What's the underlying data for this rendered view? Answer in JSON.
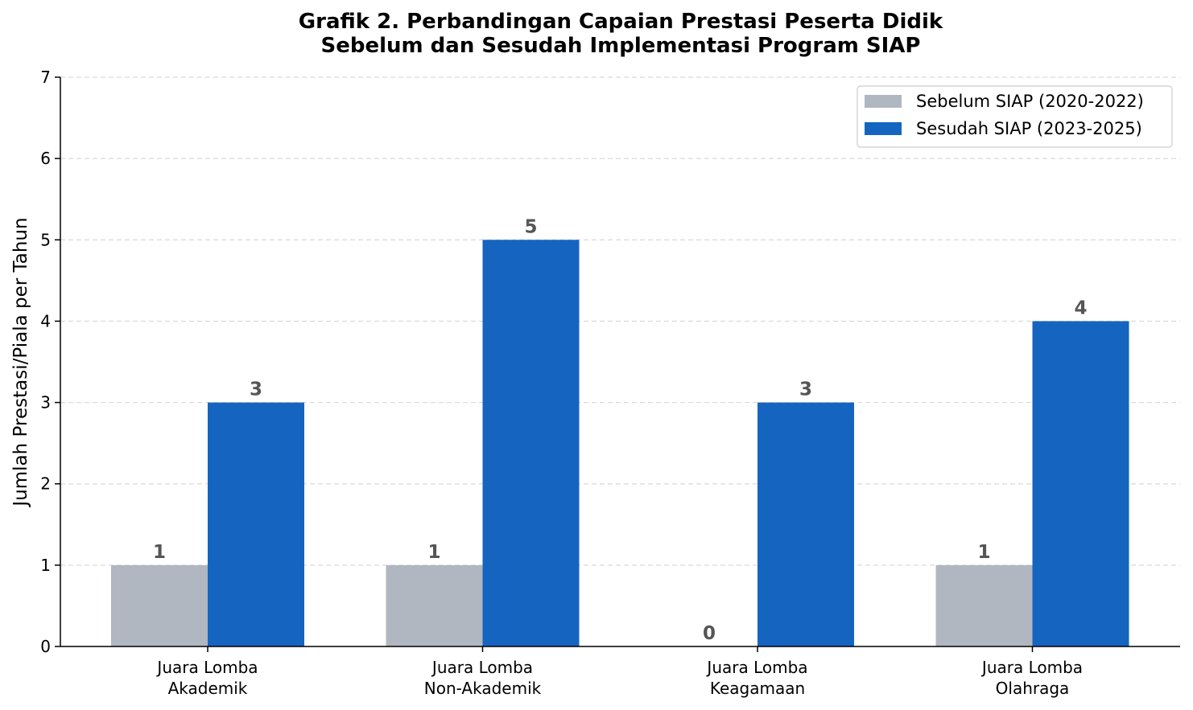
{
  "chart_data": {
    "type": "bar",
    "title": [
      "Grafik 2. Perbandingan Capaian Prestasi Peserta Didik",
      "Sebelum dan Sesudah Implementasi Program SIAP"
    ],
    "ylabel": "Jumlah Prestasi/Piala per Tahun",
    "xlabel": "",
    "ylim": [
      0,
      7
    ],
    "yticks": [
      0,
      1,
      2,
      3,
      4,
      5,
      6,
      7
    ],
    "grid": "y-dashed",
    "legend_position": "top-right",
    "categories": [
      [
        "Juara Lomba",
        "Akademik"
      ],
      [
        "Juara Lomba",
        "Non-Akademik"
      ],
      [
        "Juara Lomba",
        "Keagamaan"
      ],
      [
        "Juara Lomba",
        "Olahraga"
      ]
    ],
    "series": [
      {
        "name": "Sebelum SIAP (2020-2022)",
        "color": "#b0b7c0",
        "values": [
          1,
          1,
          0,
          1
        ]
      },
      {
        "name": "Sesudah SIAP (2023-2025)",
        "color": "#1565c0",
        "values": [
          3,
          5,
          3,
          4
        ]
      }
    ]
  }
}
